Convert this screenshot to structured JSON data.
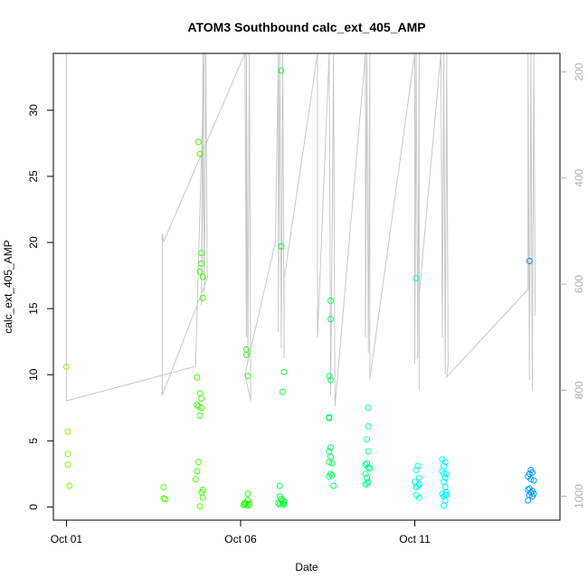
{
  "chart_data": {
    "type": "scatter",
    "title": "ATOM3 Southbound calc_ext_405_AMP",
    "xlabel": "Date",
    "ylabel": "calc_ext_405_AMP",
    "x_ticks": [
      "Oct 01",
      "Oct 06",
      "Oct 11"
    ],
    "y_ticks": [
      0,
      5,
      10,
      15,
      20,
      25,
      30
    ],
    "y2_ticks": [
      200,
      400,
      600,
      800,
      1000
    ],
    "xlim": [
      "2023-09-30T15:00",
      "2023-10-15T04:00"
    ],
    "ylim": [
      -1,
      34.3
    ],
    "y2lim": [
      1045,
      165
    ],
    "y2_reversed": true,
    "grid": false,
    "legend": "none",
    "colors": {
      "axis": "#000000",
      "secondary_axis": "#b0b0b0",
      "depth_line": "#c8c8c8"
    },
    "series": [
      {
        "type": "scatter",
        "marker": "open-circle",
        "points": [
          {
            "x": "2023-10-01T00:00",
            "y": 10.6,
            "c": "#80ff00"
          },
          {
            "x": "2023-10-01T01:00",
            "y": 5.7,
            "c": "#80ff00"
          },
          {
            "x": "2023-10-01T01:00",
            "y": 4.0,
            "c": "#80ff00"
          },
          {
            "x": "2023-10-01T01:00",
            "y": 3.2,
            "c": "#80ff00"
          },
          {
            "x": "2023-10-01T02:00",
            "y": 1.6,
            "c": "#80ff00"
          },
          {
            "x": "2023-10-03T19:00",
            "y": 1.5,
            "c": "#55ff00"
          },
          {
            "x": "2023-10-03T19:00",
            "y": 0.65,
            "c": "#55ff00"
          },
          {
            "x": "2023-10-03T20:00",
            "y": 0.6,
            "c": "#55ff00"
          },
          {
            "x": "2023-10-04T18:00",
            "y": 9.8,
            "c": "#3cff00"
          },
          {
            "x": "2023-10-04T18:00",
            "y": 7.7,
            "c": "#3cff00"
          },
          {
            "x": "2023-10-04T19:00",
            "y": 27.6,
            "c": "#3cff00"
          },
          {
            "x": "2023-10-04T20:00",
            "y": 26.7,
            "c": "#3cff00"
          },
          {
            "x": "2023-10-04T20:00",
            "y": 17.8,
            "c": "#3cff00"
          },
          {
            "x": "2023-10-04T21:00",
            "y": 19.2,
            "c": "#3cff00"
          },
          {
            "x": "2023-10-04T21:00",
            "y": 18.4,
            "c": "#3cff00"
          },
          {
            "x": "2023-10-04T22:00",
            "y": 17.4,
            "c": "#3cff00"
          },
          {
            "x": "2023-10-04T22:00",
            "y": 15.8,
            "c": "#3cff00"
          },
          {
            "x": "2023-10-04T20:00",
            "y": 8.6,
            "c": "#3cff00"
          },
          {
            "x": "2023-10-04T21:00",
            "y": 8.2,
            "c": "#3cff00"
          },
          {
            "x": "2023-10-04T19:00",
            "y": 7.6,
            "c": "#3cff00"
          },
          {
            "x": "2023-10-04T21:00",
            "y": 7.5,
            "c": "#3cff00"
          },
          {
            "x": "2023-10-04T20:00",
            "y": 6.9,
            "c": "#3cff00"
          },
          {
            "x": "2023-10-04T19:00",
            "y": 3.4,
            "c": "#3cff00"
          },
          {
            "x": "2023-10-04T18:00",
            "y": 2.7,
            "c": "#3cff00"
          },
          {
            "x": "2023-10-04T17:00",
            "y": 2.1,
            "c": "#3cff00"
          },
          {
            "x": "2023-10-04T22:00",
            "y": 1.3,
            "c": "#3cff00"
          },
          {
            "x": "2023-10-04T21:00",
            "y": 1.1,
            "c": "#3cff00"
          },
          {
            "x": "2023-10-04T22:00",
            "y": 0.7,
            "c": "#3cff00"
          },
          {
            "x": "2023-10-04T20:00",
            "y": 0.05,
            "c": "#3cff00"
          },
          {
            "x": "2023-10-06T04:00",
            "y": 11.9,
            "c": "#1cff00"
          },
          {
            "x": "2023-10-06T04:00",
            "y": 11.5,
            "c": "#1cff00"
          },
          {
            "x": "2023-10-06T05:00",
            "y": 9.9,
            "c": "#1cff00"
          },
          {
            "x": "2023-10-06T05:00",
            "y": 1.0,
            "c": "#1cff00"
          },
          {
            "x": "2023-10-06T05:00",
            "y": 0.5,
            "c": "#1cff00"
          },
          {
            "x": "2023-10-06T03:00",
            "y": 0.3,
            "c": "#1cff00"
          },
          {
            "x": "2023-10-06T04:00",
            "y": 0.25,
            "c": "#1cff00"
          },
          {
            "x": "2023-10-06T03:00",
            "y": 0.2,
            "c": "#1cff00"
          },
          {
            "x": "2023-10-06T06:00",
            "y": 0.2,
            "c": "#1cff00"
          },
          {
            "x": "2023-10-06T02:00",
            "y": 0.15,
            "c": "#1cff00"
          },
          {
            "x": "2023-10-06T05:00",
            "y": 0.1,
            "c": "#1cff00"
          },
          {
            "x": "2023-10-07T04:00",
            "y": 33.0,
            "c": "#00ff30"
          },
          {
            "x": "2023-10-07T04:00",
            "y": 19.7,
            "c": "#00ff30"
          },
          {
            "x": "2023-10-07T06:00",
            "y": 10.2,
            "c": "#00ff30"
          },
          {
            "x": "2023-10-07T05:00",
            "y": 8.7,
            "c": "#00ff30"
          },
          {
            "x": "2023-10-07T03:00",
            "y": 1.6,
            "c": "#00ff30"
          },
          {
            "x": "2023-10-07T03:00",
            "y": 0.8,
            "c": "#00ff30"
          },
          {
            "x": "2023-10-07T04:00",
            "y": 0.6,
            "c": "#00ff30"
          },
          {
            "x": "2023-10-07T05:00",
            "y": 0.5,
            "c": "#00ff30"
          },
          {
            "x": "2023-10-07T06:00",
            "y": 0.4,
            "c": "#00ff30"
          },
          {
            "x": "2023-10-07T02:00",
            "y": 0.3,
            "c": "#00ff30"
          },
          {
            "x": "2023-10-07T05:00",
            "y": 0.25,
            "c": "#00ff30"
          },
          {
            "x": "2023-10-07T03:00",
            "y": 0.2,
            "c": "#00ff30"
          },
          {
            "x": "2023-10-07T06:00",
            "y": 0.2,
            "c": "#00ff30"
          },
          {
            "x": "2023-10-08T14:00",
            "y": 15.6,
            "c": "#00ff60"
          },
          {
            "x": "2023-10-08T14:00",
            "y": 14.2,
            "c": "#00ff60"
          },
          {
            "x": "2023-10-08T13:00",
            "y": 9.9,
            "c": "#00ff60"
          },
          {
            "x": "2023-10-08T14:00",
            "y": 9.6,
            "c": "#00ff60"
          },
          {
            "x": "2023-10-08T13:00",
            "y": 6.8,
            "c": "#00ff60"
          },
          {
            "x": "2023-10-08T13:00",
            "y": 6.7,
            "c": "#00ff60"
          },
          {
            "x": "2023-10-08T14:00",
            "y": 4.5,
            "c": "#00ff60"
          },
          {
            "x": "2023-10-08T13:00",
            "y": 4.2,
            "c": "#00ff60"
          },
          {
            "x": "2023-10-08T14:00",
            "y": 3.8,
            "c": "#00ff60"
          },
          {
            "x": "2023-10-08T13:00",
            "y": 3.4,
            "c": "#00ff60"
          },
          {
            "x": "2023-10-08T15:00",
            "y": 3.3,
            "c": "#00ff60"
          },
          {
            "x": "2023-10-08T14:00",
            "y": 2.5,
            "c": "#00ff60"
          },
          {
            "x": "2023-10-08T13:00",
            "y": 2.3,
            "c": "#00ff60"
          },
          {
            "x": "2023-10-08T15:00",
            "y": 2.4,
            "c": "#00ff60"
          },
          {
            "x": "2023-10-08T16:00",
            "y": 1.6,
            "c": "#00ff60"
          },
          {
            "x": "2023-10-09T16:00",
            "y": 7.5,
            "c": "#00ff90"
          },
          {
            "x": "2023-10-09T16:00",
            "y": 6.1,
            "c": "#00ff90"
          },
          {
            "x": "2023-10-09T15:00",
            "y": 5.1,
            "c": "#00ff90"
          },
          {
            "x": "2023-10-09T16:00",
            "y": 4.2,
            "c": "#00ff90"
          },
          {
            "x": "2023-10-09T15:00",
            "y": 3.3,
            "c": "#00ff90"
          },
          {
            "x": "2023-10-09T14:00",
            "y": 3.2,
            "c": "#00ff90"
          },
          {
            "x": "2023-10-09T16:00",
            "y": 3.0,
            "c": "#00ff90"
          },
          {
            "x": "2023-10-09T17:00",
            "y": 2.9,
            "c": "#00ff90"
          },
          {
            "x": "2023-10-09T14:00",
            "y": 2.5,
            "c": "#00ff90"
          },
          {
            "x": "2023-10-09T15:00",
            "y": 2.2,
            "c": "#00ff90"
          },
          {
            "x": "2023-10-09T16:00",
            "y": 1.9,
            "c": "#00ff90"
          },
          {
            "x": "2023-10-09T14:00",
            "y": 1.7,
            "c": "#00ff90"
          },
          {
            "x": "2023-10-09T15:00",
            "y": 1.8,
            "c": "#00ff90"
          },
          {
            "x": "2023-10-11T01:00",
            "y": 17.3,
            "c": "#00ffd8"
          },
          {
            "x": "2023-10-11T02:00",
            "y": 3.1,
            "c": "#00ffd8"
          },
          {
            "x": "2023-10-11T01:00",
            "y": 2.8,
            "c": "#00ffd8"
          },
          {
            "x": "2023-10-11T03:00",
            "y": 2.2,
            "c": "#00ffd8"
          },
          {
            "x": "2023-10-11T00:00",
            "y": 1.9,
            "c": "#00ffd8"
          },
          {
            "x": "2023-10-11T02:00",
            "y": 1.6,
            "c": "#00ffd8"
          },
          {
            "x": "2023-10-11T01:00",
            "y": 1.5,
            "c": "#00ffd8"
          },
          {
            "x": "2023-10-11T03:00",
            "y": 1.7,
            "c": "#00ffd8"
          },
          {
            "x": "2023-10-11T01:00",
            "y": 0.9,
            "c": "#00ffd8"
          },
          {
            "x": "2023-10-11T03:00",
            "y": 0.7,
            "c": "#00ffd8"
          },
          {
            "x": "2023-10-11T19:00",
            "y": 3.6,
            "c": "#00f8ff"
          },
          {
            "x": "2023-10-11T21:00",
            "y": 3.4,
            "c": "#00f8ff"
          },
          {
            "x": "2023-10-11T20:00",
            "y": 3.1,
            "c": "#00f8ff"
          },
          {
            "x": "2023-10-11T19:00",
            "y": 2.7,
            "c": "#00f8ff"
          },
          {
            "x": "2023-10-11T20:00",
            "y": 2.5,
            "c": "#00f8ff"
          },
          {
            "x": "2023-10-11T22:00",
            "y": 2.5,
            "c": "#00f8ff"
          },
          {
            "x": "2023-10-11T21:00",
            "y": 2.2,
            "c": "#00f8ff"
          },
          {
            "x": "2023-10-11T20:00",
            "y": 1.9,
            "c": "#00f8ff"
          },
          {
            "x": "2023-10-11T21:00",
            "y": 1.5,
            "c": "#00f8ff"
          },
          {
            "x": "2023-10-11T22:00",
            "y": 1.1,
            "c": "#00f8ff"
          },
          {
            "x": "2023-10-11T19:00",
            "y": 1.0,
            "c": "#00f8ff"
          },
          {
            "x": "2023-10-11T21:00",
            "y": 0.9,
            "c": "#00f8ff"
          },
          {
            "x": "2023-10-11T20:00",
            "y": 0.8,
            "c": "#00f8ff"
          },
          {
            "x": "2023-10-11T22:00",
            "y": 0.9,
            "c": "#00f8ff"
          },
          {
            "x": "2023-10-11T21:00",
            "y": 0.5,
            "c": "#00f8ff"
          },
          {
            "x": "2023-10-11T20:00",
            "y": 0.1,
            "c": "#00f8ff"
          },
          {
            "x": "2023-10-14T07:00",
            "y": 18.6,
            "c": "#0098ff"
          },
          {
            "x": "2023-10-14T08:00",
            "y": 2.8,
            "c": "#0098ff"
          },
          {
            "x": "2023-10-14T09:00",
            "y": 2.6,
            "c": "#0098ff"
          },
          {
            "x": "2023-10-14T07:00",
            "y": 2.5,
            "c": "#0098ff"
          },
          {
            "x": "2023-10-14T06:00",
            "y": 2.3,
            "c": "#0098ff"
          },
          {
            "x": "2023-10-14T08:00",
            "y": 2.1,
            "c": "#0098ff"
          },
          {
            "x": "2023-10-14T10:00",
            "y": 2.0,
            "c": "#0098ff"
          },
          {
            "x": "2023-10-14T07:00",
            "y": 1.4,
            "c": "#0098ff"
          },
          {
            "x": "2023-10-14T06:00",
            "y": 1.3,
            "c": "#0098ff"
          },
          {
            "x": "2023-10-14T09:00",
            "y": 1.2,
            "c": "#0098ff"
          },
          {
            "x": "2023-10-14T08:00",
            "y": 1.1,
            "c": "#0098ff"
          },
          {
            "x": "2023-10-14T10:00",
            "y": 1.0,
            "c": "#0098ff"
          },
          {
            "x": "2023-10-14T07:00",
            "y": 0.9,
            "c": "#0098ff"
          },
          {
            "x": "2023-10-14T09:00",
            "y": 0.8,
            "c": "#0098ff"
          },
          {
            "x": "2023-10-14T06:00",
            "y": 0.5,
            "c": "#0098ff"
          }
        ]
      },
      {
        "type": "line",
        "axis": "secondary",
        "points": [
          {
            "x": "2023-10-01T00:00",
            "y": 165
          },
          {
            "x": "2023-10-01T00:00",
            "y": 820
          },
          {
            "x": "2023-10-04T17:00",
            "y": 755
          },
          {
            "x": "2023-10-04T23:00",
            "y": 165
          },
          {
            "x": "2023-10-04T21:00",
            "y": 640
          },
          {
            "x": "2023-10-04T22:00",
            "y": 165
          },
          {
            "x": "2023-10-04T23:00",
            "y": 620
          },
          {
            "x": "2023-10-05T00:00",
            "y": 165
          },
          {
            "x": "2023-10-05T01:00",
            "y": 590
          },
          {
            "x": "2023-10-03T18:00",
            "y": 810
          },
          {
            "x": "2023-10-03T18:00",
            "y": 505
          },
          {
            "x": "2023-10-03T19:00",
            "y": 520
          },
          {
            "x": "2023-10-06T03:00",
            "y": 165
          },
          {
            "x": "2023-10-06T04:00",
            "y": 700
          },
          {
            "x": "2023-10-06T04:00",
            "y": 165
          },
          {
            "x": "2023-10-06T05:00",
            "y": 740
          },
          {
            "x": "2023-10-06T06:00",
            "y": 165
          },
          {
            "x": "2023-10-06T07:00",
            "y": 820
          },
          {
            "x": "2023-10-06T03:00",
            "y": 770
          },
          {
            "x": "2023-10-07T00:00",
            "y": 520
          },
          {
            "x": "2023-10-07T02:00",
            "y": 165
          },
          {
            "x": "2023-10-07T02:00",
            "y": 690
          },
          {
            "x": "2023-10-07T03:00",
            "y": 165
          },
          {
            "x": "2023-10-07T04:00",
            "y": 720
          },
          {
            "x": "2023-10-07T05:00",
            "y": 165
          },
          {
            "x": "2023-10-07T06:00",
            "y": 740
          },
          {
            "x": "2023-10-07T06:00",
            "y": 590
          },
          {
            "x": "2023-10-08T05:00",
            "y": 165
          },
          {
            "x": "2023-10-08T05:00",
            "y": 700
          },
          {
            "x": "2023-10-08T13:00",
            "y": 165
          },
          {
            "x": "2023-10-08T14:00",
            "y": 810
          },
          {
            "x": "2023-10-08T15:00",
            "y": 515
          },
          {
            "x": "2023-10-08T16:00",
            "y": 165
          },
          {
            "x": "2023-10-08T17:00",
            "y": 830
          },
          {
            "x": "2023-10-09T14:00",
            "y": 165
          },
          {
            "x": "2023-10-09T14:00",
            "y": 700
          },
          {
            "x": "2023-10-09T15:00",
            "y": 165
          },
          {
            "x": "2023-10-09T16:00",
            "y": 730
          },
          {
            "x": "2023-10-09T17:00",
            "y": 165
          },
          {
            "x": "2023-10-09T17:00",
            "y": 780
          },
          {
            "x": "2023-10-11T00:00",
            "y": 165
          },
          {
            "x": "2023-10-11T00:00",
            "y": 750
          },
          {
            "x": "2023-10-11T01:00",
            "y": 165
          },
          {
            "x": "2023-10-11T02:00",
            "y": 740
          },
          {
            "x": "2023-10-11T03:00",
            "y": 165
          },
          {
            "x": "2023-10-11T03:00",
            "y": 800
          },
          {
            "x": "2023-10-11T03:00",
            "y": 620
          },
          {
            "x": "2023-10-11T18:00",
            "y": 165
          },
          {
            "x": "2023-10-11T19:00",
            "y": 700
          },
          {
            "x": "2023-10-11T20:00",
            "y": 165
          },
          {
            "x": "2023-10-11T21:00",
            "y": 770
          },
          {
            "x": "2023-10-11T22:00",
            "y": 165
          },
          {
            "x": "2023-10-11T23:00",
            "y": 750
          },
          {
            "x": "2023-10-11T22:00",
            "y": 775
          },
          {
            "x": "2023-10-14T06:00",
            "y": 610
          },
          {
            "x": "2023-10-14T06:00",
            "y": 165
          },
          {
            "x": "2023-10-14T07:00",
            "y": 780
          },
          {
            "x": "2023-10-14T08:00",
            "y": 165
          },
          {
            "x": "2023-10-14T09:00",
            "y": 800
          },
          {
            "x": "2023-10-14T10:00",
            "y": 165
          },
          {
            "x": "2023-10-14T11:00",
            "y": 660
          }
        ]
      }
    ]
  }
}
